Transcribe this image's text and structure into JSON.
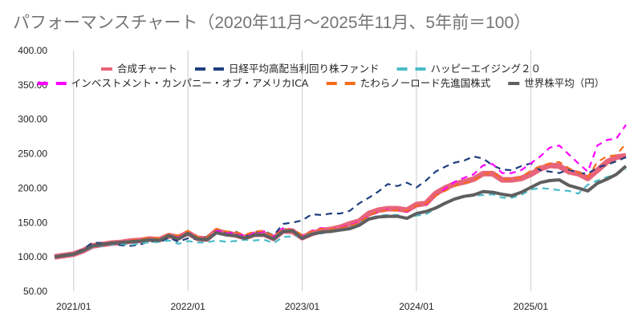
{
  "chart_data": {
    "type": "line",
    "title": "パフォーマンスチャート（2020年11月〜2025年11月、5年前＝100）",
    "xlabel": "",
    "ylabel": "",
    "ylim": [
      50,
      400
    ],
    "yticks": [
      "50.00",
      "100.00",
      "150.00",
      "200.00",
      "250.00",
      "300.00",
      "350.00",
      "400.00"
    ],
    "ytick_values": [
      50,
      100,
      150,
      200,
      250,
      300,
      350,
      400
    ],
    "x_start": "2020/11",
    "x_end": "2025/11",
    "xticks": [
      "2021/01",
      "2022/01",
      "2023/01",
      "2024/01",
      "2025/01"
    ],
    "xtick_months": [
      2,
      14,
      26,
      38,
      50
    ],
    "grid": "vertical",
    "legend_position": "top",
    "series": [
      {
        "name": "合成チャート",
        "color": "#e8647a",
        "style": "thick-solid",
        "values": [
          100,
          102,
          104,
          109,
          116,
          118,
          120,
          121,
          123,
          124,
          126,
          125,
          131,
          128,
          135,
          127,
          126,
          138,
          134,
          132,
          128,
          133,
          133,
          127,
          138,
          137,
          128,
          134,
          138,
          140,
          143,
          148,
          152,
          163,
          168,
          170,
          170,
          168,
          176,
          178,
          192,
          200,
          206,
          209,
          213,
          221,
          221,
          212,
          212,
          214,
          220,
          228,
          233,
          232,
          224,
          221,
          214,
          226,
          238,
          245,
          247
        ]
      },
      {
        "name": "日経平均高配当利回り株ファンド",
        "color": "#1f3f7f",
        "style": "dashed",
        "values": [
          100,
          101,
          105,
          111,
          121,
          120,
          119,
          117,
          116,
          118,
          123,
          121,
          128,
          122,
          127,
          126,
          129,
          139,
          136,
          137,
          130,
          136,
          138,
          131,
          148,
          150,
          153,
          162,
          161,
          163,
          163,
          167,
          178,
          186,
          195,
          206,
          203,
          208,
          201,
          211,
          224,
          231,
          237,
          240,
          246,
          243,
          233,
          227,
          226,
          232,
          236,
          226,
          224,
          222,
          227,
          222,
          221,
          230,
          234,
          239,
          245
        ]
      },
      {
        "name": "ハッピーエイジング２０",
        "color": "#4bbcc8",
        "style": "dashed",
        "values": [
          100,
          101,
          103,
          108,
          114,
          116,
          118,
          119,
          117,
          120,
          121,
          122,
          124,
          119,
          123,
          121,
          121,
          124,
          122,
          123,
          125,
          124,
          125,
          120,
          129,
          130,
          130,
          134,
          134,
          136,
          140,
          143,
          150,
          156,
          160,
          161,
          161,
          156,
          160,
          162,
          170,
          177,
          184,
          188,
          189,
          190,
          191,
          186,
          186,
          190,
          198,
          200,
          199,
          197,
          196,
          192,
          205,
          211,
          216,
          220,
          227
        ]
      },
      {
        "name": "インベストメント・カンパニー・オブ・アメリカICA",
        "color": "#ff00ff",
        "style": "dashed",
        "values": [
          100,
          102,
          104,
          110,
          116,
          118,
          120,
          122,
          124,
          126,
          127,
          126,
          131,
          130,
          137,
          128,
          128,
          138,
          135,
          135,
          131,
          135,
          137,
          130,
          142,
          140,
          131,
          138,
          142,
          140,
          143,
          146,
          151,
          160,
          165,
          169,
          168,
          166,
          174,
          176,
          189,
          199,
          209,
          215,
          220,
          233,
          235,
          222,
          222,
          226,
          236,
          246,
          259,
          262,
          249,
          236,
          224,
          262,
          270,
          272,
          292
        ]
      },
      {
        "name": "たわらノーロード先進国株式",
        "color": "#f26c1a",
        "style": "dashed",
        "values": [
          100,
          102,
          104,
          110,
          116,
          118,
          121,
          122,
          124,
          126,
          128,
          127,
          133,
          131,
          138,
          129,
          128,
          141,
          137,
          136,
          132,
          137,
          138,
          130,
          140,
          140,
          132,
          137,
          141,
          140,
          142,
          145,
          150,
          160,
          166,
          168,
          168,
          167,
          174,
          177,
          189,
          196,
          203,
          207,
          211,
          219,
          224,
          213,
          213,
          216,
          225,
          232,
          236,
          238,
          229,
          223,
          216,
          238,
          246,
          248,
          265
        ]
      },
      {
        "name": "世界株平均（円）",
        "color": "#5f5f5f",
        "style": "solid",
        "values": [
          100,
          102,
          104,
          109,
          116,
          118,
          120,
          121,
          122,
          123,
          125,
          124,
          131,
          126,
          134,
          126,
          125,
          135,
          132,
          131,
          127,
          132,
          132,
          126,
          137,
          138,
          127,
          133,
          136,
          137,
          139,
          141,
          146,
          155,
          158,
          159,
          159,
          156,
          163,
          166,
          171,
          178,
          184,
          188,
          190,
          195,
          194,
          191,
          189,
          194,
          201,
          208,
          211,
          212,
          204,
          200,
          196,
          207,
          213,
          220,
          232
        ]
      }
    ]
  }
}
